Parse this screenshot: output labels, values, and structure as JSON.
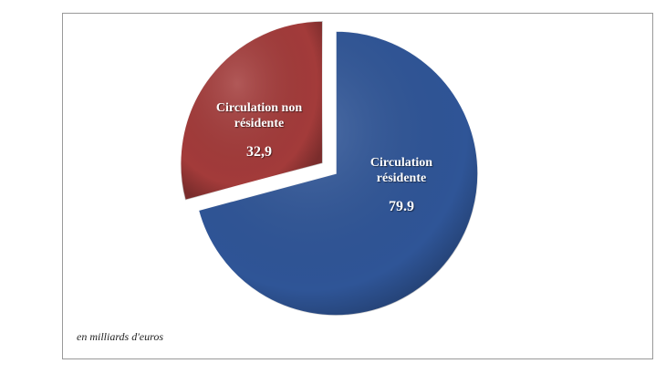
{
  "chart_data": {
    "type": "pie",
    "annotation": "en milliards d'euros",
    "categories": [
      "Circulation résidente",
      "Circulation non résidente"
    ],
    "values": [
      79.9,
      32.9
    ],
    "value_labels": [
      "79.9",
      "32,9"
    ],
    "colors": [
      "#2f5597",
      "#a33b3a"
    ]
  }
}
